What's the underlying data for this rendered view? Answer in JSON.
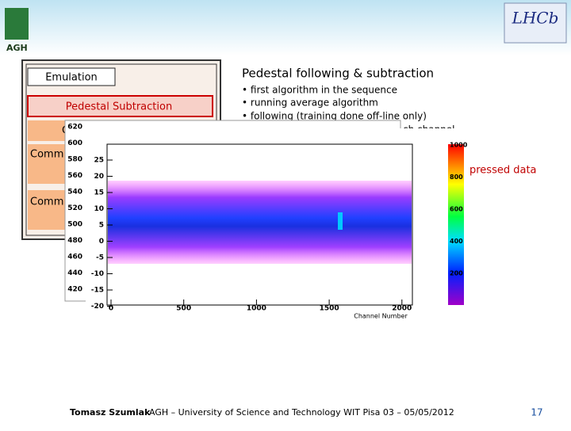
{
  "header": {
    "logo_left": "AGH",
    "logo_right": "LHCb"
  },
  "left_box": {
    "emulation": "Emulation",
    "pedestal": "Pedestal Subtraction",
    "row1": "C",
    "row2": "Comm",
    "row3": "Comm"
  },
  "right": {
    "title": "Pedestal following & subtraction",
    "bullets": [
      "• first algorithm in the sequence",
      "• running average algorithm",
      "• following (training done off-line only)",
      "ch channel"
    ],
    "note": "pressed data"
  },
  "plot_back": {
    "yticks": [
      "620",
      "600",
      "580",
      "560",
      "540",
      "520",
      "500",
      "480",
      "460",
      "440",
      "420"
    ]
  },
  "plot_front": {
    "yticks": [
      "25",
      "20",
      "15",
      "10",
      "5",
      "0",
      "-5",
      "-10",
      "-15",
      "-20"
    ],
    "xticks": [
      "0",
      "500",
      "1000",
      "1500",
      "2000"
    ],
    "zticks": [
      "1000",
      "800",
      "600",
      "400",
      "200"
    ],
    "xlabel": "Channel Number"
  },
  "footer": {
    "author": "Tomasz Szumlak",
    "text": "AGH – University of Science and Technology WIT Pisa 03 – 05/05/2012",
    "page": "17"
  }
}
